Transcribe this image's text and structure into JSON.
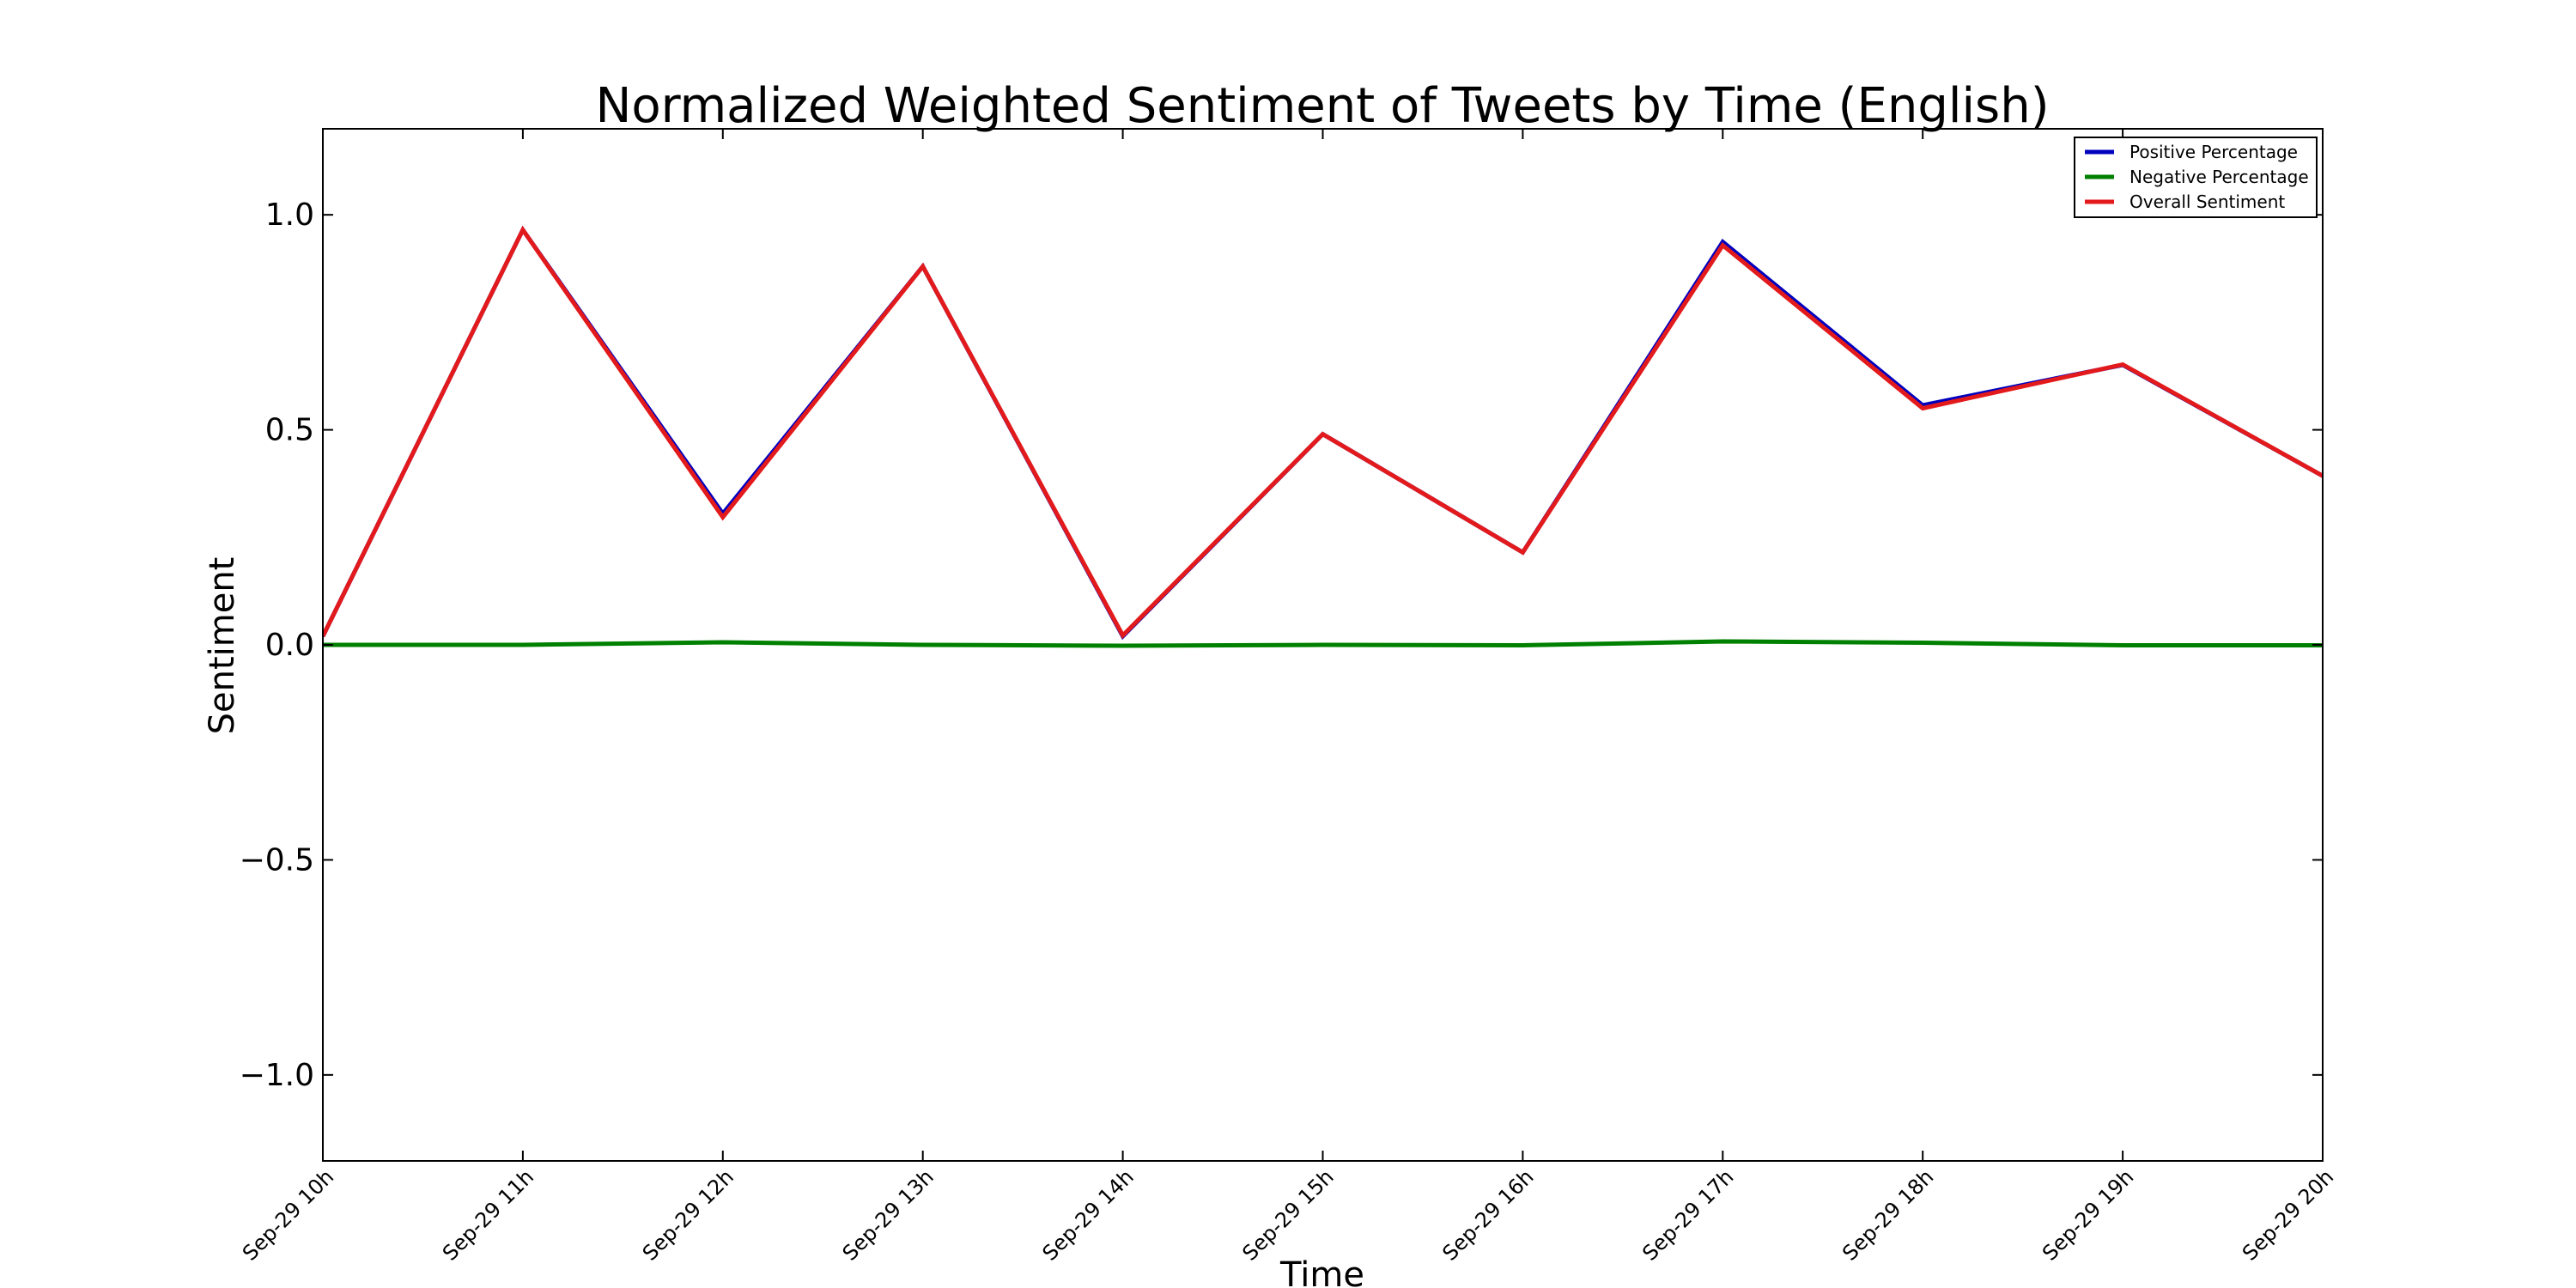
{
  "chart_data": {
    "type": "line",
    "title": "Normalized Weighted Sentiment of Tweets by Time (English)",
    "xlabel": "Time",
    "ylabel": "Sentiment",
    "categories": [
      "Sep-29 10h",
      "Sep-29 11h",
      "Sep-29 12h",
      "Sep-29 13h",
      "Sep-29 14h",
      "Sep-29 15h",
      "Sep-29 16h",
      "Sep-29 17h",
      "Sep-29 18h",
      "Sep-29 19h",
      "Sep-29 20h"
    ],
    "ylim": [
      -1.2,
      1.2
    ],
    "yticks": [
      -1.0,
      -0.5,
      0.0,
      0.5,
      1.0
    ],
    "ytick_labels": [
      "−1.0",
      "−0.5",
      "0.0",
      "0.5",
      "1.0"
    ],
    "grid": false,
    "legend_position": "top-right",
    "series": [
      {
        "name": "Positive Percentage",
        "color": "#0000bf",
        "values": [
          0.02,
          0.965,
          0.305,
          0.88,
          0.02,
          0.49,
          0.215,
          0.937,
          0.557,
          0.651,
          0.393
        ]
      },
      {
        "name": "Negative Percentage",
        "color": "#008000",
        "values": [
          0.0,
          0.0,
          0.006,
          0.0,
          -0.002,
          0.0,
          -0.001,
          0.008,
          0.005,
          -0.001,
          -0.001
        ]
      },
      {
        "name": "Overall Sentiment",
        "color": "#e31a1c",
        "values": [
          0.02,
          0.965,
          0.297,
          0.88,
          0.022,
          0.49,
          0.215,
          0.929,
          0.55,
          0.652,
          0.393
        ]
      }
    ]
  }
}
